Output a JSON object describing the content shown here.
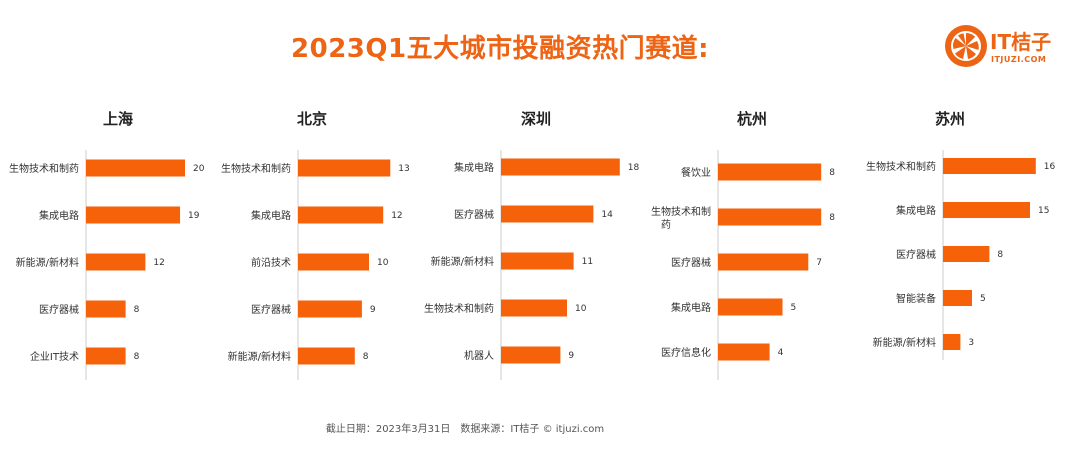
{
  "title": "2023Q1五大城市投融资热门赛道:",
  "logo": {
    "text": "IT桔子",
    "url": "ITJUZI.COM"
  },
  "footer": "截止日期：2023年3月31日　数据来源：IT桔子 © itjuzi.com",
  "colors": {
    "accent": "#ec6414",
    "bar": "#f5620a",
    "axis": "#cccccc"
  },
  "chart_data": [
    {
      "type": "bar",
      "title": "上海",
      "orientation": "horizontal",
      "categories": [
        "生物技术和制药",
        "集成电路",
        "新能源/新材料",
        "医疗器械",
        "企业IT技术"
      ],
      "values": [
        20,
        19,
        12,
        8,
        8
      ]
    },
    {
      "type": "bar",
      "title": "北京",
      "orientation": "horizontal",
      "categories": [
        "生物技术和制药",
        "集成电路",
        "前沿技术",
        "医疗器械",
        "新能源/新材料"
      ],
      "values": [
        13,
        12,
        10,
        9,
        8
      ]
    },
    {
      "type": "bar",
      "title": "深圳",
      "orientation": "horizontal",
      "categories": [
        "集成电路",
        "医疗器械",
        "新能源/新材料",
        "生物技术和制药",
        "机器人"
      ],
      "values": [
        18,
        14,
        11,
        10,
        9
      ]
    },
    {
      "type": "bar",
      "title": "杭州",
      "orientation": "horizontal",
      "categories": [
        "餐饮业",
        "生物技术和制药",
        "医疗器械",
        "集成电路",
        "医疗信息化"
      ],
      "values": [
        8,
        8,
        7,
        5,
        4
      ]
    },
    {
      "type": "bar",
      "title": "苏州",
      "orientation": "horizontal",
      "categories": [
        "生物技术和制药",
        "集成电路",
        "医疗器械",
        "智能装备",
        "新能源/新材料"
      ],
      "values": [
        16,
        15,
        8,
        5,
        3
      ]
    }
  ]
}
